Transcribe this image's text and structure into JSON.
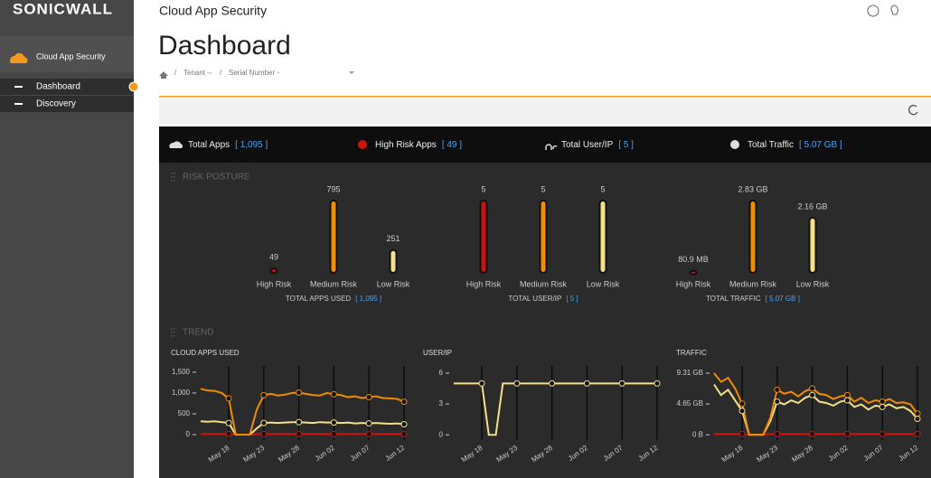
{
  "sidebar": {
    "logo": "SONICWALL",
    "product": "Cloud App Security",
    "menu": [
      "Dashboard",
      "Discovery"
    ]
  },
  "header": {
    "app": "Cloud App Security",
    "title": "Dashboard",
    "separator": "/",
    "breadcrumb": [
      "Tenant --",
      "Serial Number -"
    ]
  },
  "summary": [
    {
      "label": "Total Apps",
      "value": "[ 1,095 ]"
    },
    {
      "label": "High Risk Apps",
      "value": "[ 49 ]"
    },
    {
      "label": "Total User/IP",
      "value": "[ 5 ]"
    },
    {
      "label": "Total Traffic",
      "value": "[ 5.07 GB ]"
    }
  ],
  "sections": [
    "RISK POSTURE",
    "TREND"
  ],
  "chart_data": [
    {
      "type": "bar",
      "categories": [
        "High Risk",
        "Medium Risk",
        "Low Risk"
      ],
      "values": [
        49,
        795,
        251
      ],
      "colors": [
        "#c8140c",
        "#f08c00",
        "#f5e08a"
      ],
      "footer": "TOTAL APPS USED",
      "footer_value": "[ 1,095 ]"
    },
    {
      "type": "bar",
      "categories": [
        "High Risk",
        "Medium Risk",
        "Low Risk"
      ],
      "values": [
        5,
        5,
        5
      ],
      "colors": [
        "#c8140c",
        "#f08c00",
        "#f5e08a"
      ],
      "footer": "TOTAL USER/IP",
      "footer_value": "[ 5 ]"
    },
    {
      "type": "bar",
      "categories": [
        "High Risk",
        "Medium Risk",
        "Low Risk"
      ],
      "values": [
        0.0809,
        2.83,
        2.16
      ],
      "value_labels": [
        "80.9 MB",
        "2.83 GB",
        "2.16 GB"
      ],
      "colors": [
        "#c8140c",
        "#f08c00",
        "#f5e08a"
      ],
      "footer": "TOTAL TRAFFIC",
      "footer_value": "[ 5.07 GB ]"
    },
    {
      "type": "line",
      "title": "CLOUD APPS USED",
      "categories": [
        null,
        null,
        null,
        null,
        "May 18",
        null,
        null,
        null,
        null,
        "May 23",
        null,
        null,
        null,
        null,
        "May 28",
        null,
        null,
        null,
        null,
        "Jun 02",
        null,
        null,
        null,
        null,
        "Jun 07",
        null,
        null,
        null,
        null,
        "Jun 12"
      ],
      "series": [
        {
          "color": "#f08c00",
          "values": [
            1100,
            1060,
            1050,
            1000,
            870,
            0,
            0,
            0,
            600,
            950,
            980,
            940,
            960,
            1000,
            1010,
            980,
            950,
            940,
            1000,
            970,
            950,
            900,
            920,
            880,
            900,
            920,
            880,
            870,
            860,
            790
          ]
        },
        {
          "color": "#f5e08a",
          "values": [
            320,
            310,
            320,
            300,
            280,
            0,
            0,
            0,
            150,
            280,
            290,
            280,
            290,
            300,
            300,
            290,
            280,
            300,
            290,
            290,
            280,
            290,
            270,
            280,
            270,
            280,
            270,
            260,
            270,
            250
          ]
        },
        {
          "color": "#d0140c",
          "values": [
            15,
            15,
            20,
            15,
            15,
            0,
            0,
            0,
            10,
            15,
            15,
            20,
            15,
            15,
            15,
            15,
            20,
            15,
            15,
            15,
            15,
            15,
            20,
            15,
            15,
            15,
            15,
            15,
            15,
            15
          ]
        }
      ],
      "ylim": [
        -130,
        1650
      ],
      "yticks": [
        0,
        500,
        {
          "value": 1000,
          "label": "1,000"
        },
        {
          "value": 1500,
          "label": "1,500"
        }
      ]
    },
    {
      "type": "line",
      "title": "USER/IP",
      "categories": [
        null,
        null,
        null,
        null,
        "May 18",
        null,
        null,
        null,
        null,
        "May 23",
        null,
        null,
        null,
        null,
        "May 28",
        null,
        null,
        null,
        null,
        "Jun 02",
        null,
        null,
        null,
        null,
        "Jun 07",
        null,
        null,
        null,
        null,
        "Jun 12"
      ],
      "series": [
        {
          "color": "#f5e08a",
          "values": [
            5,
            5,
            5,
            5,
            5,
            0,
            0,
            5,
            5,
            5,
            5,
            5,
            5,
            5,
            5,
            5,
            5,
            5,
            5,
            5,
            5,
            5,
            5,
            5,
            5,
            5,
            5,
            5,
            5,
            5
          ]
        }
      ],
      "ylim": [
        -0.5,
        6.7
      ],
      "yticks": [
        0,
        3,
        6
      ]
    },
    {
      "type": "line",
      "title": "TRAFFIC",
      "categories": [
        null,
        null,
        null,
        null,
        "May 18",
        null,
        null,
        null,
        null,
        "May 23",
        null,
        null,
        null,
        null,
        "May 28",
        null,
        null,
        null,
        null,
        "Jun 02",
        null,
        null,
        null,
        null,
        "Jun 07",
        null,
        null,
        null,
        null,
        "Jun 12"
      ],
      "series": [
        {
          "color": "#f08c00",
          "values": [
            9.3,
            8.0,
            8.6,
            7.0,
            4.7,
            0,
            0,
            0,
            2.5,
            6.8,
            6.2,
            6.5,
            5.8,
            6.6,
            7.0,
            6.2,
            6.0,
            5.4,
            5.8,
            6.0,
            5.0,
            5.6,
            4.8,
            5.2,
            5.0,
            5.4,
            4.8,
            4.9,
            4.6,
            3.2
          ]
        },
        {
          "color": "#f5e08a",
          "values": [
            7.6,
            6.0,
            6.8,
            5.2,
            3.6,
            0,
            0,
            0,
            2.0,
            5.0,
            4.6,
            5.2,
            4.8,
            5.6,
            6.0,
            5.0,
            4.8,
            4.4,
            5.0,
            5.2,
            4.2,
            4.6,
            3.8,
            4.4,
            4.2,
            4.6,
            4.0,
            4.2,
            3.6,
            2.4
          ]
        },
        {
          "color": "#d0140c",
          "values": [
            0.1,
            0.1,
            0.1,
            0.1,
            0.1,
            0,
            0,
            0,
            0.1,
            0.1,
            0.1,
            0.1,
            0.1,
            0.1,
            0.1,
            0.1,
            0.1,
            0.1,
            0.1,
            0.1,
            0.1,
            0.1,
            0.1,
            0.1,
            0.1,
            0.1,
            0.1,
            0.1,
            0.1,
            0.1
          ]
        }
      ],
      "ylim": [
        -0.8,
        10.4
      ],
      "yticks": [
        {
          "value": 0,
          "label": "0 B"
        },
        {
          "value": 4.65,
          "label": "4.65 GB"
        },
        {
          "value": 9.31,
          "label": "9.31 GB"
        }
      ]
    }
  ]
}
